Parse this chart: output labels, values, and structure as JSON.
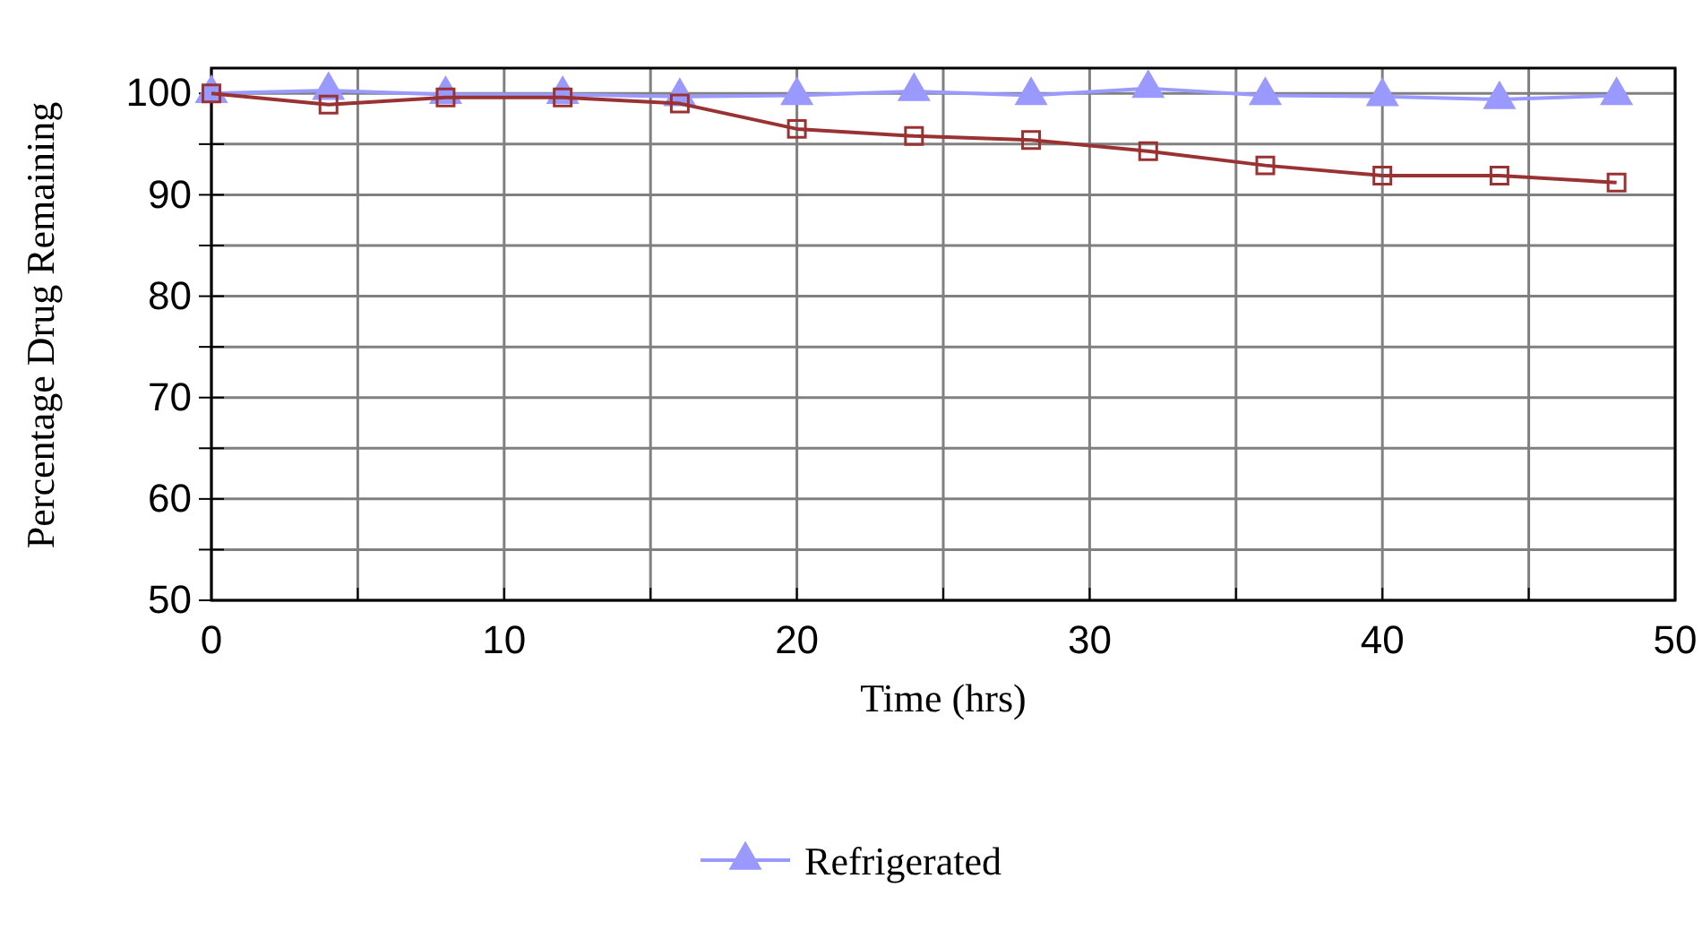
{
  "chart_data": {
    "type": "line",
    "xlabel": "Time (hrs)",
    "ylabel": "Percentage Drug Remaining",
    "x": [
      0,
      4,
      8,
      12,
      16,
      20,
      24,
      28,
      32,
      36,
      40,
      44,
      48
    ],
    "series": [
      {
        "name": "Refrigerated",
        "color": "#9999ff",
        "marker": "triangle",
        "values": [
          100,
          100.3,
          99.9,
          99.9,
          99.7,
          99.8,
          100.2,
          99.8,
          100.5,
          99.8,
          99.7,
          99.4,
          99.8
        ]
      },
      {
        "color": "#993333",
        "marker": "square",
        "values": [
          100,
          98.9,
          99.6,
          99.6,
          99,
          96.5,
          95.8,
          95.4,
          94.3,
          92.9,
          91.9,
          91.9,
          91.2
        ]
      }
    ],
    "xlim": [
      0,
      50
    ],
    "xticks": [
      0,
      {
        "value": 5,
        "label": null
      },
      10,
      {
        "value": 15,
        "label": null
      },
      20,
      {
        "value": 25,
        "label": null
      },
      30,
      {
        "value": 35,
        "label": null
      },
      40,
      {
        "value": 45,
        "label": null
      },
      50
    ],
    "ylim": [
      50,
      102.5
    ],
    "yticks": [
      50,
      {
        "value": 55,
        "label": null
      },
      60,
      {
        "value": 65,
        "label": null
      },
      70,
      {
        "value": 75,
        "label": null
      },
      80,
      {
        "value": 85,
        "label": null
      },
      90,
      {
        "value": 95,
        "label": null
      },
      100
    ],
    "grid": true,
    "legend": "bottom",
    "line_style": "solid"
  }
}
